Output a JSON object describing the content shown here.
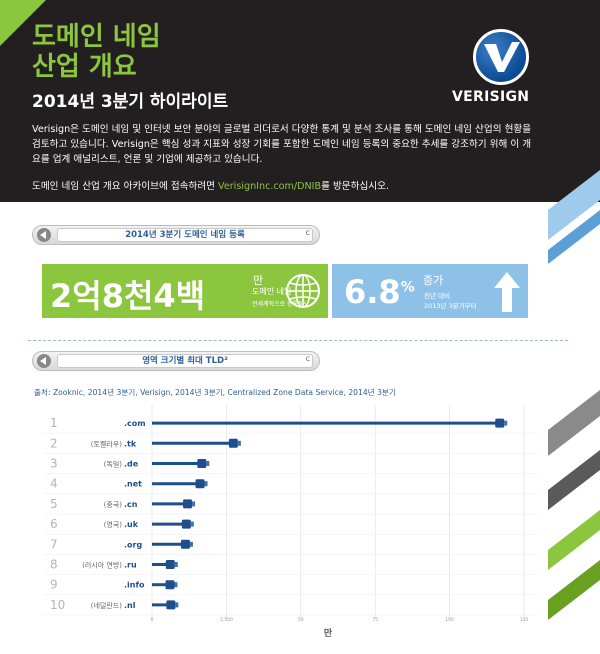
{
  "header": {
    "title_line1": "도메인 네임",
    "title_line2": "산업 개요",
    "subtitle": "2014년 3분기 하이라이트",
    "logo_text": "VERISIGN",
    "intro": "Verisign은 도메인 네임 및 인터넷 보안 분야의 글로벌 리더로서 다양한 통계 및 분석 조사를 통해 도메인 네임 산업의 현황을 검토하고 있습니다. Verisign은 핵심 성과 지표와 성장 기회를 포함한 도메인 네임 등록의 중요한 추세를 강조하기 위해 이 개요를 업계 애널리스트, 언론 및 기업에 제공하고 있습니다.",
    "archive_prefix": "도메인 네임 산업 개요 아카이브에 접속하려면 ",
    "archive_link": "VerisignInc.com/DNIB",
    "archive_suffix": "를 방문하십시오."
  },
  "section1": {
    "label": "2014년 3분기 도메인 네임 등록",
    "reload": "c"
  },
  "stats": {
    "total_value": "2억8천4백",
    "total_unit": "만",
    "total_desc": "도메인 네임",
    "total_desc2": "전세계적으로 등록됨¹",
    "growth_value": "6.8",
    "growth_pct": "%",
    "growth_unit": "증가",
    "growth_desc": "전년 대비",
    "growth_desc2": "2013년 3분기부터"
  },
  "section2": {
    "label": "영역 크기별 최대 TLD²",
    "reload": "c"
  },
  "source": "출처: Zooknic, 2014년 3분기, Verisign, 2014년 3분기, Centralized Zone Data Service, 2014년 3분기",
  "colors": {
    "green": "#8cc63f",
    "blue": "#8ec1e8",
    "dark": "#231f20",
    "navy": "#1f4e8c"
  },
  "chart_data": {
    "type": "bar",
    "orientation": "horizontal",
    "ranks": [
      "1",
      "2",
      "3",
      "4",
      "5",
      "6",
      "7",
      "8",
      "9",
      "10"
    ],
    "categories": [
      ".com",
      ".tk",
      ".de",
      ".net",
      ".cn",
      ".uk",
      ".org",
      ".ru",
      ".info",
      ".nl"
    ],
    "country_labels": [
      "",
      "(토켈라우)",
      "(독일)",
      "",
      "(중국)",
      "(영국)",
      "",
      "(러시아 연방)",
      "",
      "(네덜란드)"
    ],
    "values": [
      116.0,
      26.5,
      15.9,
      15.3,
      11.1,
      10.7,
      10.4,
      5.3,
      5.2,
      5.5
    ],
    "xlabel": "만",
    "x_ticks": [
      "0",
      "2,500",
      "50",
      "75",
      "100",
      "125"
    ],
    "xlim": [
      0,
      125
    ],
    "grid": true
  }
}
